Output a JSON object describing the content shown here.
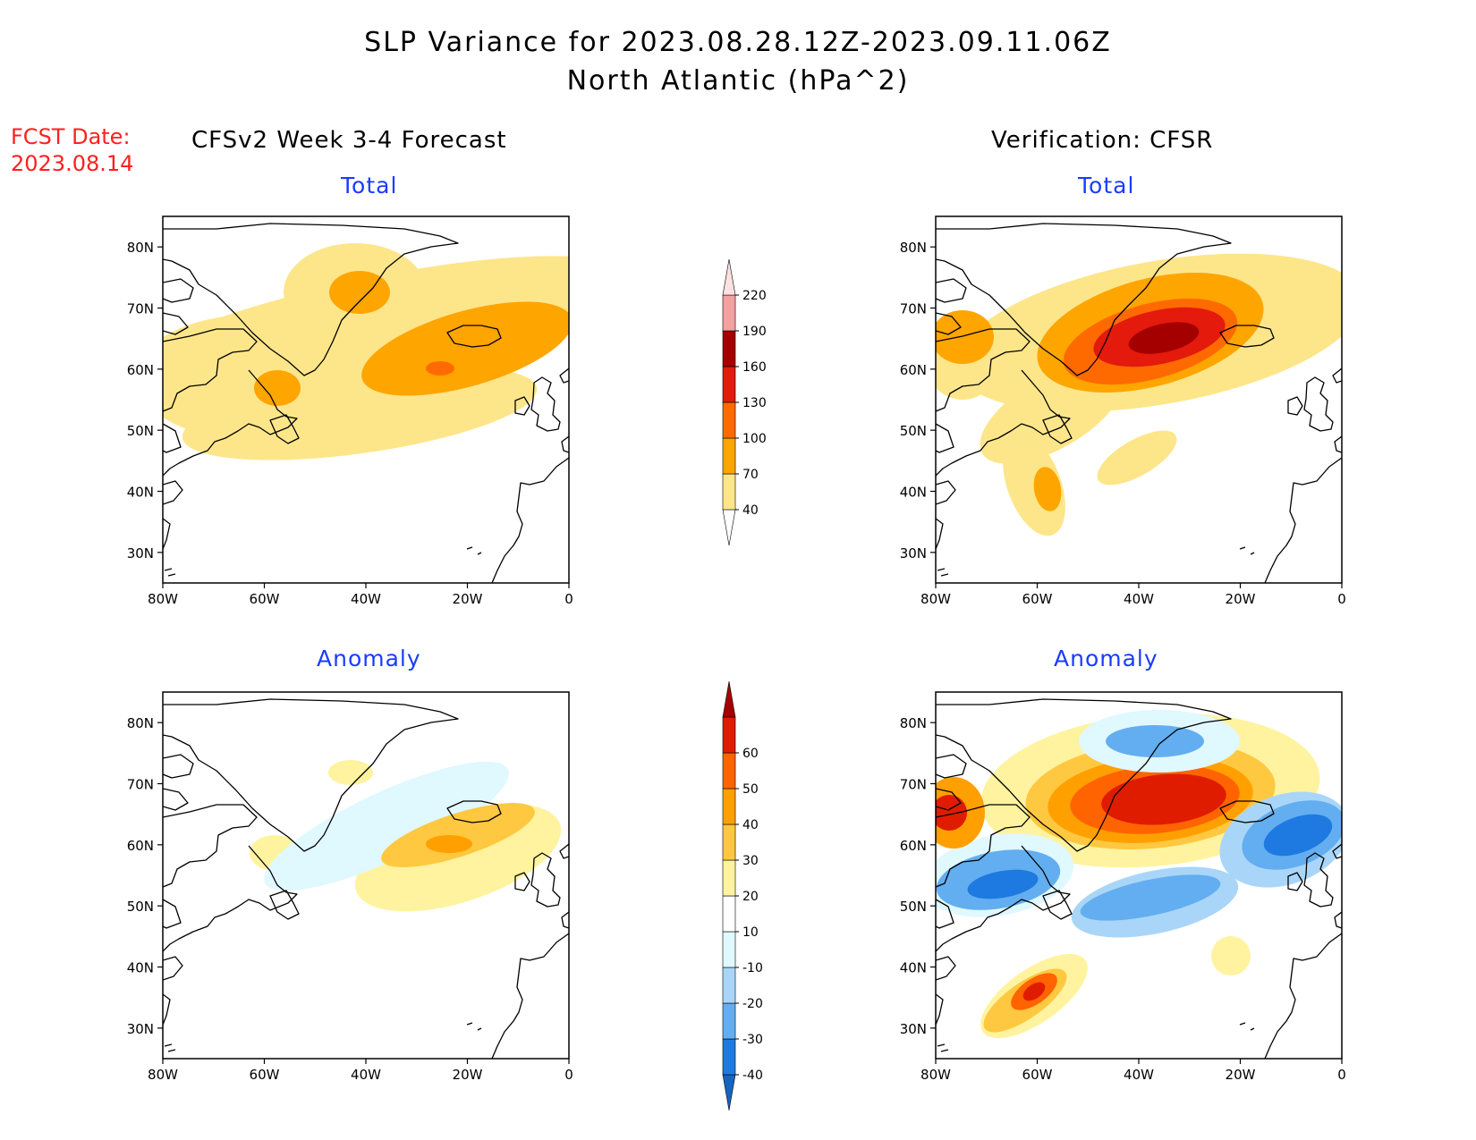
{
  "header": {
    "title_line1": "SLP Variance for 2023.08.28.12Z-2023.09.11.06Z",
    "title_line2": "North Atlantic (hPa^2)",
    "fcst_label": "FCST Date:",
    "fcst_date": "2023.08.14",
    "left_column_title": "CFSv2 Week 3-4 Forecast",
    "right_column_title": "Verification: CFSR"
  },
  "panels": {
    "top_left_title": "Total",
    "top_right_title": "Total",
    "bottom_left_title": "Anomaly",
    "bottom_right_title": "Anomaly"
  },
  "axes": {
    "lat_labels": [
      "80N",
      "70N",
      "60N",
      "50N",
      "40N",
      "30N"
    ],
    "lat_values": [
      80,
      70,
      60,
      50,
      40,
      30
    ],
    "lon_labels": [
      "80W",
      "60W",
      "40W",
      "20W",
      "0"
    ],
    "lon_values": [
      -80,
      -60,
      -40,
      -20,
      0
    ],
    "lat_range": [
      25,
      85
    ],
    "lon_range": [
      -80,
      0
    ]
  },
  "total_colorbar": {
    "labels": [
      "40",
      "70",
      "100",
      "130",
      "160",
      "190",
      "220"
    ],
    "colors": [
      "#fde68a",
      "#ffa500",
      "#ff6a00",
      "#e31a0c",
      "#a50000",
      "#f4a1a1",
      "#fde0e0"
    ]
  },
  "anomaly_colorbar": {
    "labels": [
      "-40",
      "-30",
      "-20",
      "-10",
      "10",
      "20",
      "30",
      "40",
      "50",
      "60"
    ],
    "colors": [
      "#1565c0",
      "#1e7ae0",
      "#63aef0",
      "#a9d6f8",
      "#e0f8ff",
      "#ffffff",
      "#fff3a0",
      "#ffc840",
      "#ffa000",
      "#ff6400",
      "#e01c00",
      "#a50000"
    ]
  },
  "colors": {
    "title_blue": "#1a3cff",
    "fcst_red": "#ff2020"
  }
}
